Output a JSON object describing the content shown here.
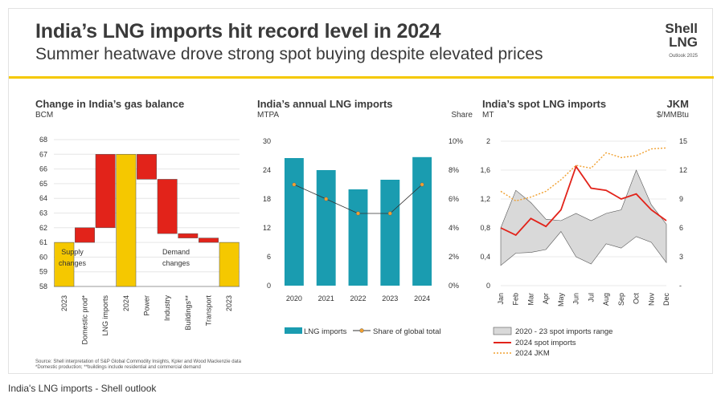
{
  "header": {
    "title": "India’s LNG imports hit record level in 2024",
    "subtitle": "Summer heatwave drove strong spot buying despite elevated prices",
    "logo_line1": "Shell",
    "logo_line2": "LNG",
    "logo_line3": "Outlook 2025"
  },
  "footnotes": {
    "source": "Source: Shell interpretation of S&P Global Commodity Insights, Kpler and Wood Mackenzie data",
    "note": "*Domestic production; **buildings include residential and commercial demand"
  },
  "caption": "India's LNG imports - Shell outlook",
  "colors": {
    "yellow": "#f5c800",
    "red": "#e2231a",
    "teal": "#1a9cb0",
    "grey_band": "#d9d9d9",
    "jkm": "#f0a030"
  },
  "chart_data": [
    {
      "type": "bar",
      "subtype": "waterfall",
      "title": "Change in India’s gas balance",
      "ylabel": "BCM",
      "ylim": [
        58,
        68
      ],
      "yticks": [
        58,
        59,
        60,
        61,
        62,
        63,
        64,
        65,
        66,
        67,
        68
      ],
      "categories": [
        "2023",
        "Domestic prod*",
        "LNG imports",
        "2024",
        "Power",
        "Industry",
        "Buildings**",
        "Transport",
        "2023"
      ],
      "bars": [
        {
          "label": "2023",
          "start": 58,
          "end": 61,
          "kind": "total"
        },
        {
          "label": "Domestic prod*",
          "start": 61,
          "end": 62,
          "kind": "change"
        },
        {
          "label": "LNG imports",
          "start": 62,
          "end": 67,
          "kind": "change"
        },
        {
          "label": "2024",
          "start": 58,
          "end": 67,
          "kind": "total"
        },
        {
          "label": "Power",
          "start": 67,
          "end": 65.3,
          "kind": "change"
        },
        {
          "label": "Industry",
          "start": 65.3,
          "end": 61.6,
          "kind": "change"
        },
        {
          "label": "Buildings**",
          "start": 61.6,
          "end": 61.3,
          "kind": "change"
        },
        {
          "label": "Transport",
          "start": 61.3,
          "end": 61,
          "kind": "change"
        },
        {
          "label": "2023",
          "start": 58,
          "end": 61,
          "kind": "total"
        }
      ],
      "annotations": [
        {
          "text": [
            "Supply",
            "changes"
          ]
        },
        {
          "text": [
            "Demand",
            "changes"
          ]
        }
      ]
    },
    {
      "type": "bar",
      "title": "India’s annual LNG imports",
      "ylabel": "MTPA",
      "y2label": "Share",
      "categories": [
        "2020",
        "2021",
        "2022",
        "2023",
        "2024"
      ],
      "ylim": [
        0,
        30
      ],
      "yticks": [
        0,
        6,
        12,
        18,
        24,
        30
      ],
      "y2lim": [
        0,
        10
      ],
      "y2ticks": [
        "0%",
        "2%",
        "4%",
        "6%",
        "8%",
        "10%"
      ],
      "series": [
        {
          "name": "LNG imports",
          "values": [
            26.5,
            24,
            20,
            22,
            26.7
          ],
          "axis": "left"
        },
        {
          "name": "Share of global total",
          "values": [
            7,
            6,
            5,
            5,
            7
          ],
          "axis": "right"
        }
      ]
    },
    {
      "type": "line",
      "title": "India’s spot LNG imports",
      "ylabel": "MT",
      "y2label": "JKM\n$/MMBtu",
      "x": [
        "Jan",
        "Feb",
        "Mar",
        "Apr",
        "May",
        "Jun",
        "Jul",
        "Aug",
        "Sep",
        "Oct",
        "Nov",
        "Dec"
      ],
      "ylim": [
        0,
        2
      ],
      "yticks": [
        "0",
        "0,4",
        "0,8",
        "1,2",
        "1,6",
        "2"
      ],
      "y2lim": [
        0,
        15
      ],
      "y2ticks": [
        "-",
        "3",
        "6",
        "9",
        "12",
        "15"
      ],
      "series": [
        {
          "name": "2020 - 23 spot imports range",
          "low": [
            0.28,
            0.45,
            0.46,
            0.5,
            0.75,
            0.4,
            0.3,
            0.58,
            0.52,
            0.68,
            0.6,
            0.32
          ],
          "high": [
            0.8,
            1.32,
            1.15,
            0.92,
            0.9,
            1.0,
            0.9,
            1.0,
            1.05,
            1.6,
            1.12,
            0.85
          ]
        },
        {
          "name": "2024 spot imports",
          "values": [
            0.8,
            0.7,
            0.93,
            0.82,
            1.05,
            1.65,
            1.35,
            1.32,
            1.2,
            1.27,
            1.05,
            0.9
          ],
          "axis": "left"
        },
        {
          "name": "2024 JKM",
          "values": [
            9.8,
            8.8,
            9.2,
            9.8,
            11.0,
            12.5,
            12.2,
            13.8,
            13.3,
            13.5,
            14.2,
            14.3
          ],
          "axis": "right"
        }
      ]
    }
  ]
}
